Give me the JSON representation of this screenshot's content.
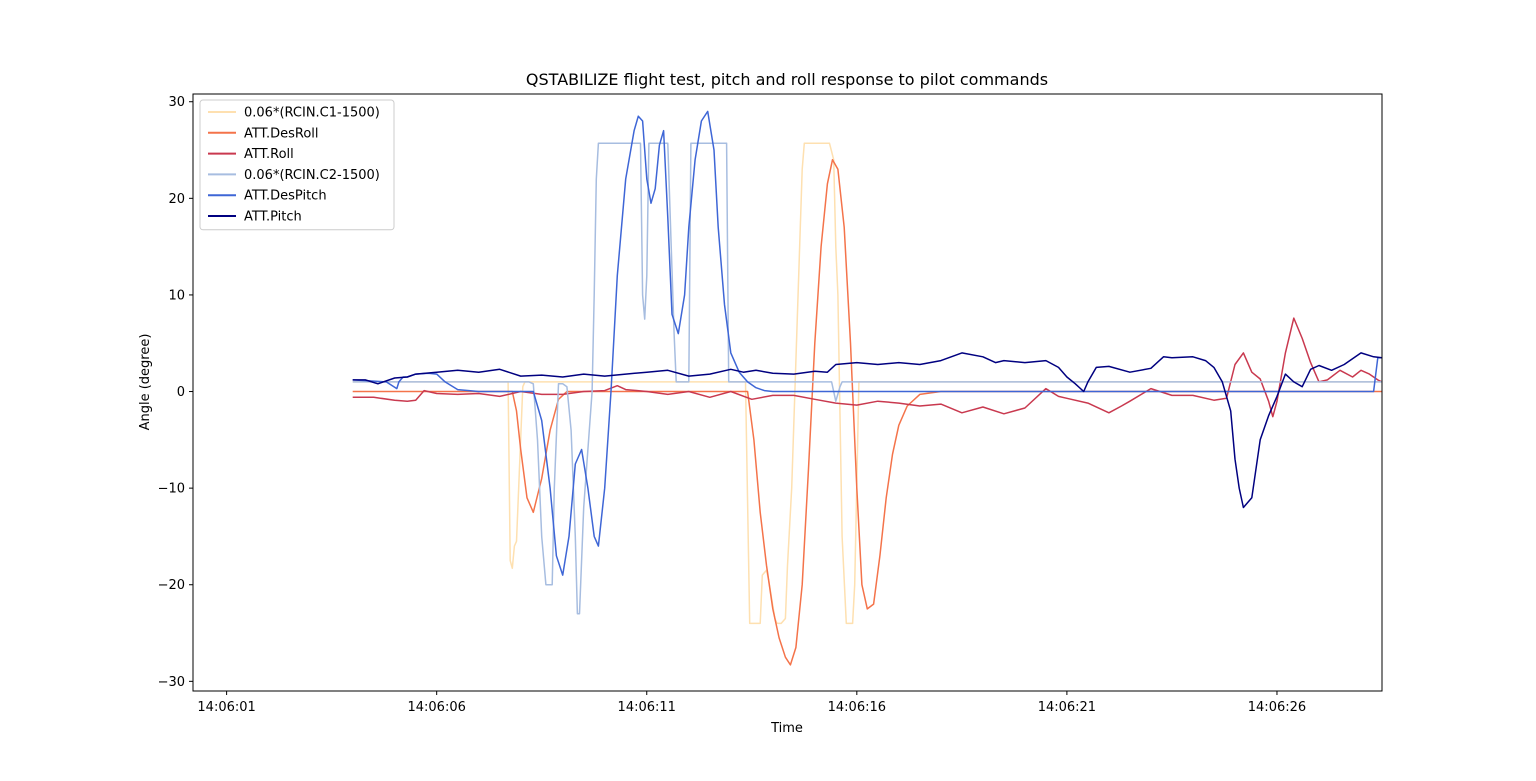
{
  "chart_data": {
    "type": "line",
    "title": "QSTABILIZE flight test, pitch and roll response to pilot commands",
    "xlabel": "Time",
    "ylabel": "Angle (degree)",
    "xlim": [
      "14:06:00.2",
      "14:06:28.5"
    ],
    "ylim": [
      -31,
      30.8
    ],
    "x_ticks": [
      "14:06:01",
      "14:06:06",
      "14:06:11",
      "14:06:16",
      "14:06:21",
      "14:06:26"
    ],
    "y_ticks": [
      -30,
      -20,
      -10,
      0,
      10,
      20,
      30
    ],
    "grid": false,
    "legend_position": "top-left",
    "x_unit": "seconds after 14:06:00",
    "series": [
      {
        "name": "0.06*(RCIN.C1-1500)",
        "color": "#fee0b0",
        "x": [
          4.0,
          7.7,
          7.75,
          7.8,
          7.85,
          7.9,
          8.05,
          8.1,
          13.35,
          13.45,
          13.7,
          13.75,
          13.85,
          13.9,
          14.05,
          14.1,
          14.2,
          14.3,
          14.35,
          14.45,
          14.7,
          14.75,
          14.85,
          14.95,
          15.35,
          15.45,
          15.5,
          15.55,
          15.65,
          15.75,
          15.85,
          15.9,
          15.95,
          16.05,
          28.5
        ],
        "y": [
          1.0,
          1.0,
          -17.5,
          -18.3,
          -16.0,
          -15.5,
          0.5,
          1.0,
          1.0,
          -24.0,
          -24.0,
          -19.0,
          -18.5,
          -19.5,
          -23.5,
          -24.0,
          -24.0,
          -23.5,
          -18.0,
          -10.0,
          23.0,
          25.7,
          25.7,
          25.7,
          25.7,
          24.0,
          15.0,
          10.0,
          -15.0,
          -24.0,
          -24.0,
          -24.0,
          -20.0,
          1.0,
          1.0
        ]
      },
      {
        "name": "ATT.DesRoll",
        "color": "#f4734a",
        "x": [
          4.0,
          7.8,
          7.9,
          8.0,
          8.15,
          8.3,
          8.5,
          8.7,
          8.9,
          9.1,
          13.4,
          13.55,
          13.7,
          13.85,
          14.0,
          14.15,
          14.3,
          14.42,
          14.55,
          14.7,
          14.85,
          15.0,
          15.15,
          15.3,
          15.42,
          15.55,
          15.7,
          15.85,
          16.0,
          16.12,
          16.25,
          16.4,
          16.55,
          16.7,
          16.85,
          17.0,
          17.2,
          17.5,
          18.0,
          28.5
        ],
        "y": [
          0.0,
          0.0,
          -2.0,
          -6.0,
          -11.0,
          -12.5,
          -9.0,
          -4.0,
          -0.8,
          0.0,
          0.0,
          -5.0,
          -12.5,
          -18.0,
          -22.5,
          -25.5,
          -27.5,
          -28.3,
          -26.5,
          -20.0,
          -8.0,
          5.0,
          15.0,
          21.5,
          24.0,
          23.0,
          17.0,
          5.0,
          -10.0,
          -20.0,
          -22.5,
          -22.0,
          -17.0,
          -11.0,
          -6.5,
          -3.5,
          -1.5,
          -0.3,
          0.0,
          0.0
        ]
      },
      {
        "name": "ATT.Roll",
        "color": "#c9394f",
        "x": [
          4.0,
          4.5,
          5.0,
          5.3,
          5.5,
          5.7,
          6.0,
          6.5,
          7.0,
          7.5,
          8.0,
          8.5,
          9.0,
          9.5,
          10.0,
          10.3,
          10.5,
          11.0,
          11.5,
          12.0,
          12.5,
          13.0,
          13.5,
          14.0,
          14.5,
          15.0,
          15.5,
          16.0,
          16.5,
          17.0,
          17.5,
          18.0,
          18.5,
          19.0,
          19.5,
          20.0,
          20.5,
          20.8,
          21.0,
          21.5,
          22.0,
          22.3,
          22.5,
          23.0,
          23.5,
          24.0,
          24.5,
          24.8,
          25.0,
          25.2,
          25.4,
          25.6,
          25.8,
          25.9,
          26.0,
          26.2,
          26.4,
          26.6,
          26.8,
          27.0,
          27.2,
          27.5,
          27.8,
          28.0,
          28.2,
          28.4,
          28.5
        ],
        "y": [
          -0.6,
          -0.6,
          -0.9,
          -1.0,
          -0.9,
          0.1,
          -0.2,
          -0.3,
          -0.2,
          -0.5,
          0.0,
          -0.3,
          -0.3,
          0.0,
          0.1,
          0.6,
          0.2,
          0.0,
          -0.3,
          0.0,
          -0.6,
          0.0,
          -0.8,
          -0.4,
          -0.4,
          -0.8,
          -1.2,
          -1.4,
          -1.0,
          -1.2,
          -1.5,
          -1.3,
          -2.2,
          -1.6,
          -2.3,
          -1.7,
          0.3,
          -0.5,
          -0.7,
          -1.2,
          -2.2,
          -1.5,
          -1.0,
          0.3,
          -0.4,
          -0.4,
          -0.9,
          -0.7,
          2.8,
          4.0,
          2.0,
          1.3,
          -1.0,
          -2.6,
          -1.0,
          4.0,
          7.6,
          5.5,
          3.0,
          1.0,
          1.2,
          2.2,
          1.5,
          2.2,
          1.8,
          1.2,
          1.0
        ]
      },
      {
        "name": "0.06*(RCIN.C2-1500)",
        "color": "#a7bde0",
        "x": [
          4.0,
          7.5,
          8.2,
          8.3,
          8.4,
          8.5,
          8.6,
          8.75,
          8.8,
          8.9,
          9.0,
          9.1,
          9.2,
          9.3,
          9.35,
          9.4,
          9.5,
          9.7,
          9.75,
          9.8,
          9.85,
          10.85,
          10.9,
          10.95,
          11.0,
          11.05,
          11.15,
          11.2,
          11.25,
          11.5,
          11.65,
          11.7,
          11.85,
          12.0,
          12.05,
          12.9,
          12.95,
          15.4,
          15.5,
          15.6,
          15.65,
          28.5
        ],
        "y": [
          1.0,
          1.0,
          1.0,
          0.8,
          -5.0,
          -15.0,
          -20.0,
          -20.0,
          -10.0,
          0.8,
          0.8,
          0.5,
          -4.0,
          -15.0,
          -23.0,
          -23.0,
          -12.0,
          0.0,
          10.0,
          22.0,
          25.7,
          25.7,
          10.0,
          7.5,
          12.0,
          25.7,
          25.7,
          25.7,
          25.7,
          25.7,
          6.0,
          1.0,
          1.0,
          1.0,
          25.7,
          25.7,
          1.0,
          1.0,
          -1.0,
          0.5,
          1.0,
          1.0
        ]
      },
      {
        "name": "ATT.DesPitch",
        "color": "#3e66d6",
        "x": [
          4.0,
          4.8,
          5.05,
          5.1,
          5.2,
          5.3,
          5.5,
          5.8,
          6.0,
          6.2,
          6.5,
          7.0,
          8.3,
          8.5,
          8.7,
          8.85,
          9.0,
          9.15,
          9.3,
          9.45,
          9.6,
          9.75,
          9.85,
          10.0,
          10.15,
          10.3,
          10.5,
          10.7,
          10.8,
          10.9,
          11.0,
          11.1,
          11.2,
          11.3,
          11.4,
          11.5,
          11.6,
          11.75,
          11.9,
          12.0,
          12.15,
          12.3,
          12.45,
          12.6,
          12.7,
          12.85,
          13.0,
          13.2,
          13.4,
          13.6,
          13.8,
          14.0,
          14.5,
          16.0,
          28.3,
          28.4,
          28.5
        ],
        "y": [
          1.2,
          1.0,
          0.3,
          1.0,
          1.5,
          1.5,
          1.8,
          1.9,
          1.8,
          1.0,
          0.2,
          0.0,
          0.0,
          -3.0,
          -10.0,
          -17.0,
          -19.0,
          -15.0,
          -7.5,
          -6.0,
          -10.0,
          -15.0,
          -16.0,
          -10.0,
          0.0,
          12.0,
          22.0,
          27.0,
          28.5,
          28.0,
          22.0,
          19.5,
          21.0,
          25.5,
          27.0,
          18.0,
          8.0,
          6.0,
          10.0,
          17.0,
          24.0,
          28.0,
          29.0,
          25.0,
          17.0,
          9.0,
          4.0,
          2.0,
          1.0,
          0.4,
          0.1,
          0.0,
          0.0,
          0.0,
          0.0,
          3.5,
          3.5
        ]
      },
      {
        "name": "ATT.Pitch",
        "color": "#000080",
        "x": [
          4.0,
          4.3,
          4.6,
          5.0,
          5.3,
          5.5,
          6.0,
          6.5,
          7.0,
          7.5,
          8.0,
          8.5,
          9.0,
          9.5,
          10.0,
          10.5,
          11.0,
          11.5,
          12.0,
          12.5,
          13.0,
          13.3,
          13.6,
          14.0,
          14.5,
          15.0,
          15.3,
          15.5,
          16.0,
          16.5,
          17.0,
          17.5,
          18.0,
          18.5,
          19.0,
          19.3,
          19.5,
          20.0,
          20.5,
          20.8,
          21.0,
          21.2,
          21.4,
          21.5,
          21.7,
          22.0,
          22.5,
          23.0,
          23.3,
          23.5,
          24.0,
          24.3,
          24.5,
          24.7,
          24.9,
          25.0,
          25.1,
          25.2,
          25.4,
          25.6,
          25.8,
          26.0,
          26.2,
          26.4,
          26.6,
          26.8,
          27.0,
          27.3,
          27.6,
          28.0,
          28.3,
          28.5
        ],
        "y": [
          1.2,
          1.2,
          0.8,
          1.4,
          1.5,
          1.8,
          2.0,
          2.2,
          2.0,
          2.3,
          1.6,
          1.7,
          1.5,
          1.8,
          1.6,
          1.8,
          2.0,
          2.2,
          1.6,
          1.8,
          2.3,
          2.0,
          2.2,
          1.9,
          1.8,
          2.1,
          2.0,
          2.8,
          3.0,
          2.8,
          3.0,
          2.8,
          3.2,
          4.0,
          3.6,
          3.0,
          3.2,
          3.0,
          3.2,
          2.5,
          1.5,
          0.8,
          0.0,
          1.0,
          2.5,
          2.6,
          2.0,
          2.4,
          3.6,
          3.5,
          3.6,
          3.2,
          2.5,
          1.0,
          -2.0,
          -7.0,
          -10.0,
          -12.0,
          -11.0,
          -5.0,
          -2.5,
          -0.5,
          1.8,
          1.0,
          0.5,
          2.3,
          2.7,
          2.2,
          2.8,
          4.0,
          3.6,
          3.5
        ]
      }
    ]
  }
}
